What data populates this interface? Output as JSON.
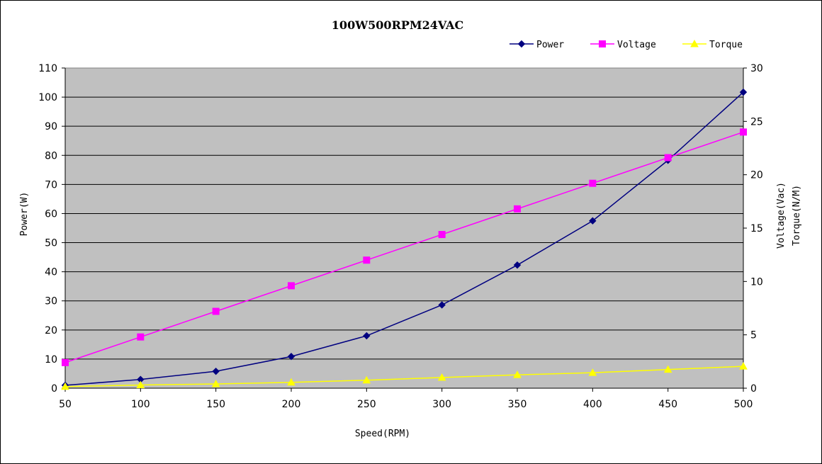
{
  "chart_data": {
    "type": "line",
    "title": "100W500RPM24VAC",
    "xlabel": "Speed(RPM)",
    "ylabel": "Power(W)",
    "y2label": [
      "Voltage(Vac)",
      "Torque(N/M)"
    ],
    "x": [
      50,
      100,
      150,
      200,
      250,
      300,
      350,
      400,
      450,
      500
    ],
    "xlim": [
      50,
      500
    ],
    "xticks": [
      "50",
      "100",
      "150",
      "200",
      "250",
      "300",
      "350",
      "400",
      "450",
      "500"
    ],
    "ylim": [
      0,
      110
    ],
    "yticks": [
      "0",
      "10",
      "20",
      "30",
      "40",
      "50",
      "60",
      "70",
      "80",
      "90",
      "100",
      "110"
    ],
    "y2lim": [
      0,
      30
    ],
    "y2ticks": [
      "0",
      "5",
      "10",
      "15",
      "20",
      "25",
      "30"
    ],
    "grid": true,
    "plot_background": "#C0C0C0",
    "legend_position": "top-right",
    "series": [
      {
        "name": "Power",
        "axis": "left",
        "color": "#000080",
        "marker": "diamond",
        "values": [
          1.0,
          3.0,
          5.8,
          10.9,
          18.0,
          28.6,
          42.3,
          57.5,
          78.3,
          101.7
        ]
      },
      {
        "name": "Voltage",
        "axis": "right",
        "color": "#FF00FF",
        "marker": "square",
        "values": [
          2.4,
          4.8,
          7.2,
          9.6,
          12.0,
          14.4,
          16.8,
          19.2,
          21.6,
          24.0
        ]
      },
      {
        "name": "Torque",
        "axis": "right",
        "color": "#FFFF00",
        "marker": "triangle",
        "values": [
          0.15,
          0.3,
          0.4,
          0.55,
          0.75,
          1.0,
          1.25,
          1.45,
          1.75,
          2.05
        ]
      }
    ]
  }
}
